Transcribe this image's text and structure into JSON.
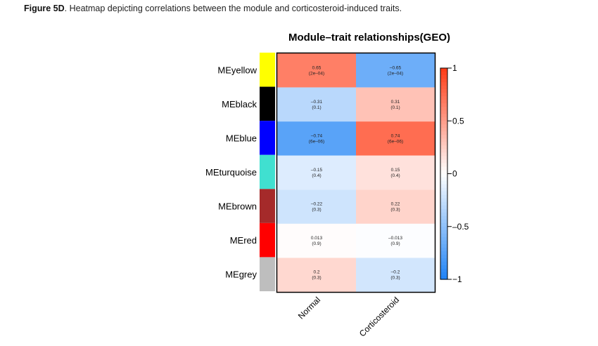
{
  "caption": {
    "label": "Figure 5D",
    "text": ". Heatmap depicting correlations between the module and corticosteroid-induced traits."
  },
  "chart_data": {
    "type": "heatmap",
    "title": "Module–trait relationships(GEO)",
    "xlabel": "",
    "ylabel": "",
    "columns": [
      "Normal",
      "Corticosteroid"
    ],
    "rows": [
      {
        "module": "MEyellow",
        "swatch": "#ffff00",
        "values": [
          0.65,
          -0.65
        ],
        "pvalues": [
          "(2e–04)",
          "(2e–04)"
        ],
        "labels": [
          "0.65",
          "–0.65"
        ]
      },
      {
        "module": "MEblack",
        "swatch": "#000000",
        "values": [
          -0.31,
          0.31
        ],
        "pvalues": [
          "(0.1)",
          "(0.1)"
        ],
        "labels": [
          "–0.31",
          "0.31"
        ]
      },
      {
        "module": "MEblue",
        "swatch": "#0000ff",
        "values": [
          -0.74,
          0.74
        ],
        "pvalues": [
          "(6e–06)",
          "(6e–06)"
        ],
        "labels": [
          "–0.74",
          "0.74"
        ]
      },
      {
        "module": "MEturquoise",
        "swatch": "#40e0d0",
        "values": [
          -0.15,
          0.15
        ],
        "pvalues": [
          "(0.4)",
          "(0.4)"
        ],
        "labels": [
          "–0.15",
          "0.15"
        ]
      },
      {
        "module": "MEbrown",
        "swatch": "#a52a2a",
        "values": [
          -0.22,
          0.22
        ],
        "pvalues": [
          "(0.3)",
          "(0.3)"
        ],
        "labels": [
          "–0.22",
          "0.22"
        ]
      },
      {
        "module": "MEred",
        "swatch": "#ff0000",
        "values": [
          0.013,
          -0.013
        ],
        "pvalues": [
          "(0.9)",
          "(0.9)"
        ],
        "labels": [
          "0.013",
          "–0.013"
        ]
      },
      {
        "module": "MEgrey",
        "swatch": "#bebebe",
        "values": [
          0.2,
          -0.2
        ],
        "pvalues": [
          "(0.3)",
          "(0.3)"
        ],
        "labels": [
          "0.2",
          "–0.2"
        ]
      }
    ],
    "colorbar": {
      "range": [
        -1,
        1
      ],
      "ticks": [
        1,
        0.5,
        0,
        -0.5,
        -1
      ],
      "tick_labels": [
        "1",
        "0.5",
        "0",
        "–0.5",
        "−1"
      ],
      "low_color": "#1e82f5",
      "mid_color": "#ffffff",
      "high_color": "#ff3a14"
    },
    "legend": "right",
    "grid": false
  }
}
